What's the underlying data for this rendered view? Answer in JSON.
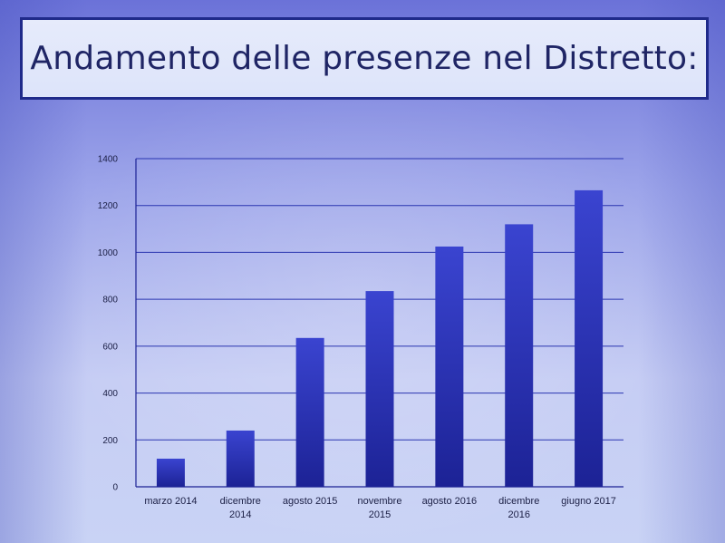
{
  "slide": {
    "title": "Andamento delle presenze nel Distretto:"
  },
  "chart_data": {
    "type": "bar",
    "title": "",
    "xlabel": "",
    "ylabel": "",
    "ylim": [
      0,
      1400
    ],
    "yticks": [
      0,
      200,
      400,
      600,
      800,
      1000,
      1200,
      1400
    ],
    "grid": true,
    "legend": "none",
    "categories": [
      [
        "marzo 2014"
      ],
      [
        "dicembre",
        "2014"
      ],
      [
        "agosto 2015"
      ],
      [
        "novembre",
        "2015"
      ],
      [
        "agosto 2016"
      ],
      [
        "dicembre",
        "2016"
      ],
      [
        "giugno 2017"
      ]
    ],
    "values": [
      120,
      240,
      635,
      835,
      1025,
      1120,
      1265
    ],
    "colors": {
      "bar_top": "#3a44d0",
      "bar_bottom": "#1c2295",
      "grid": "#2a35b0",
      "axis": "#1c2295"
    }
  }
}
